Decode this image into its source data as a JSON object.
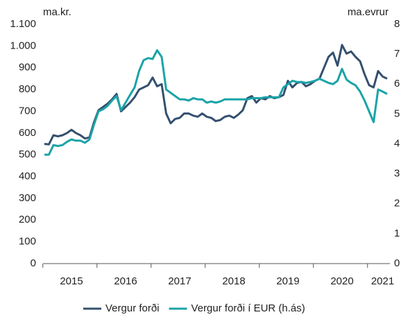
{
  "chart_data": {
    "type": "line",
    "y_label": "ma.kr.",
    "y2_label": "ma.evrur",
    "categories": [
      null,
      null,
      null,
      null,
      null,
      null,
      "2015",
      null,
      null,
      null,
      null,
      null,
      null,
      null,
      null,
      null,
      null,
      null,
      "2016",
      null,
      null,
      null,
      null,
      null,
      null,
      null,
      null,
      null,
      null,
      null,
      "2017",
      null,
      null,
      null,
      null,
      null,
      null,
      null,
      null,
      null,
      null,
      null,
      "2018",
      null,
      null,
      null,
      null,
      null,
      null,
      null,
      null,
      null,
      null,
      null,
      "2019",
      null,
      null,
      null,
      null,
      null,
      null,
      null,
      null,
      null,
      null,
      null,
      "2020",
      null,
      null,
      null,
      null,
      null,
      null,
      null,
      null,
      "2021",
      null
    ],
    "series": [
      {
        "name": "Vergur forði",
        "color": "#34506e",
        "values": [
          550,
          548,
          590,
          585,
          590,
          600,
          615,
          600,
          590,
          575,
          580,
          650,
          705,
          720,
          735,
          755,
          780,
          700,
          720,
          740,
          765,
          800,
          810,
          820,
          855,
          815,
          825,
          690,
          645,
          665,
          670,
          690,
          690,
          680,
          675,
          690,
          675,
          670,
          655,
          660,
          675,
          680,
          670,
          685,
          705,
          760,
          770,
          740,
          760,
          755,
          770,
          760,
          765,
          775,
          840,
          810,
          830,
          835,
          815,
          825,
          840,
          850,
          900,
          950,
          970,
          910,
          1005,
          965,
          975,
          950,
          930,
          870,
          820,
          810,
          885,
          860,
          850
        ]
      },
      {
        "name": "Vergur forði í EUR (h.ás)",
        "color": "#1aa3a8",
        "axis": "y2",
        "values": [
          3.64,
          3.64,
          3.96,
          3.93,
          3.96,
          4.07,
          4.15,
          4.11,
          4.11,
          4.04,
          4.15,
          4.65,
          5.09,
          5.16,
          5.27,
          5.45,
          5.6,
          5.13,
          5.38,
          5.64,
          5.89,
          6.44,
          6.8,
          6.87,
          6.84,
          7.13,
          6.91,
          5.82,
          5.71,
          5.6,
          5.49,
          5.49,
          5.45,
          5.53,
          5.49,
          5.49,
          5.38,
          5.42,
          5.38,
          5.42,
          5.49,
          5.49,
          5.49,
          5.49,
          5.49,
          5.49,
          5.53,
          5.53,
          5.53,
          5.56,
          5.56,
          5.56,
          5.56,
          5.89,
          6.0,
          6.11,
          6.07,
          6.07,
          6.04,
          6.07,
          6.11,
          6.18,
          6.11,
          6.04,
          6.0,
          6.11,
          6.51,
          6.15,
          6.04,
          5.96,
          5.75,
          5.45,
          5.09,
          4.73,
          5.82,
          5.75,
          5.67
        ]
      }
    ],
    "ylim": [
      0,
      1100
    ],
    "yticks": [
      0,
      100,
      200,
      300,
      400,
      500,
      600,
      700,
      800,
      900,
      {
        "value": 1000,
        "label": "1.000"
      },
      {
        "value": 1100,
        "label": "1.100"
      }
    ],
    "y2lim": [
      0,
      8
    ],
    "y2ticks": [
      0,
      1,
      2,
      3,
      4,
      5,
      6,
      7,
      8
    ],
    "legend": "bottom"
  }
}
